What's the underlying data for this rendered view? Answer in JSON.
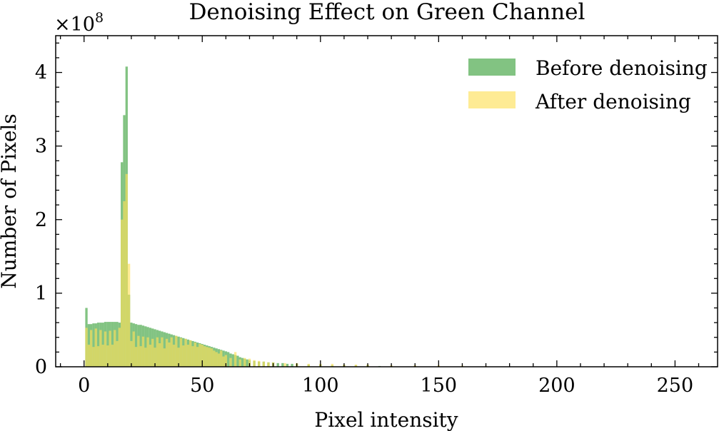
{
  "chart_data": {
    "type": "bar",
    "title": "Denoising Effect on Green Channel",
    "xlabel": "Pixel intensity",
    "ylabel": "Number of Pixels",
    "y_offset_label": "×10",
    "y_offset_exponent": "8",
    "xlim": [
      -12,
      268
    ],
    "ylim": [
      0,
      4.5
    ],
    "y_scale_factor": 100000000,
    "x_ticks": [
      0,
      50,
      100,
      150,
      200,
      250
    ],
    "x_tick_labels": [
      "0",
      "50",
      "100",
      "150",
      "200",
      "250"
    ],
    "y_ticks": [
      0,
      1,
      2,
      3,
      4
    ],
    "y_tick_labels": [
      "0",
      "1",
      "2",
      "3",
      "4"
    ],
    "bin_width": 1,
    "legend_position": "top-right",
    "grid": false,
    "series": [
      {
        "name": "Before denoising",
        "color": "#3fa33f",
        "x": [
          1,
          2,
          3,
          4,
          5,
          6,
          7,
          8,
          9,
          10,
          11,
          12,
          13,
          14,
          15,
          16,
          17,
          18,
          19,
          20,
          21,
          22,
          23,
          24,
          25,
          26,
          27,
          28,
          29,
          30,
          31,
          32,
          33,
          34,
          35,
          36,
          37,
          38,
          39,
          40,
          41,
          42,
          43,
          44,
          45,
          46,
          47,
          48,
          49,
          50,
          51,
          52,
          53,
          54,
          55,
          56,
          57,
          58,
          59,
          60,
          61,
          62,
          63,
          64,
          65,
          66,
          67,
          68,
          69,
          70,
          72,
          74,
          76,
          78,
          80,
          82,
          84,
          86,
          88,
          90,
          95,
          100,
          105,
          110,
          115,
          120,
          125,
          130,
          140,
          150,
          160,
          170,
          180
        ],
        "values": [
          0.8,
          0.58,
          0.58,
          0.59,
          0.59,
          0.6,
          0.6,
          0.6,
          0.61,
          0.61,
          0.61,
          0.61,
          0.61,
          0.61,
          0.6,
          2.78,
          3.42,
          4.08,
          0.98,
          0.6,
          0.59,
          0.58,
          0.57,
          0.57,
          0.56,
          0.55,
          0.54,
          0.53,
          0.52,
          0.51,
          0.5,
          0.49,
          0.48,
          0.47,
          0.46,
          0.45,
          0.44,
          0.43,
          0.42,
          0.41,
          0.4,
          0.39,
          0.38,
          0.37,
          0.36,
          0.35,
          0.34,
          0.33,
          0.32,
          0.31,
          0.3,
          0.29,
          0.28,
          0.27,
          0.26,
          0.25,
          0.24,
          0.23,
          0.22,
          0.21,
          0.2,
          0.18,
          0.17,
          0.16,
          0.15,
          0.13,
          0.12,
          0.11,
          0.1,
          0.09,
          0.08,
          0.07,
          0.07,
          0.06,
          0.06,
          0.05,
          0.05,
          0.04,
          0.04,
          0.04,
          0.03,
          0.03,
          0.02,
          0.02,
          0.02,
          0.02,
          0.01,
          0.01,
          0.01,
          0.005,
          0.003,
          0.002,
          0.001
        ]
      },
      {
        "name": "After denoising",
        "color": "#fde05a",
        "x": [
          1,
          2,
          3,
          4,
          5,
          6,
          7,
          8,
          9,
          10,
          11,
          12,
          13,
          14,
          15,
          16,
          17,
          18,
          19,
          20,
          21,
          22,
          23,
          24,
          25,
          26,
          27,
          28,
          29,
          30,
          31,
          32,
          33,
          34,
          35,
          36,
          37,
          38,
          39,
          40,
          41,
          42,
          43,
          44,
          45,
          46,
          47,
          48,
          49,
          50,
          51,
          52,
          53,
          54,
          55,
          56,
          57,
          58,
          59,
          60,
          62,
          64,
          66,
          68,
          70,
          72,
          74,
          76,
          78,
          80,
          85,
          90,
          95,
          100,
          105,
          110,
          115,
          120,
          130,
          140,
          150,
          160,
          170
        ],
        "values": [
          0.53,
          0.3,
          0.5,
          0.27,
          0.52,
          0.28,
          0.5,
          0.3,
          0.48,
          0.29,
          0.49,
          0.3,
          0.5,
          0.35,
          0.53,
          2.0,
          2.25,
          2.62,
          1.4,
          0.35,
          0.48,
          0.27,
          0.42,
          0.28,
          0.41,
          0.26,
          0.4,
          0.3,
          0.38,
          0.26,
          0.4,
          0.32,
          0.4,
          0.25,
          0.38,
          0.33,
          0.4,
          0.3,
          0.42,
          0.26,
          0.39,
          0.29,
          0.38,
          0.3,
          0.36,
          0.28,
          0.33,
          0.27,
          0.31,
          0.3,
          0.28,
          0.27,
          0.26,
          0.25,
          0.22,
          0.2,
          0.18,
          0.22,
          0.14,
          0.16,
          0.12,
          0.2,
          0.1,
          0.12,
          0.11,
          0.09,
          0.08,
          0.07,
          0.06,
          0.06,
          0.05,
          0.05,
          0.04,
          0.04,
          0.04,
          0.03,
          0.03,
          0.03,
          0.02,
          0.02,
          0.02,
          0.015,
          0.01
        ]
      }
    ]
  }
}
